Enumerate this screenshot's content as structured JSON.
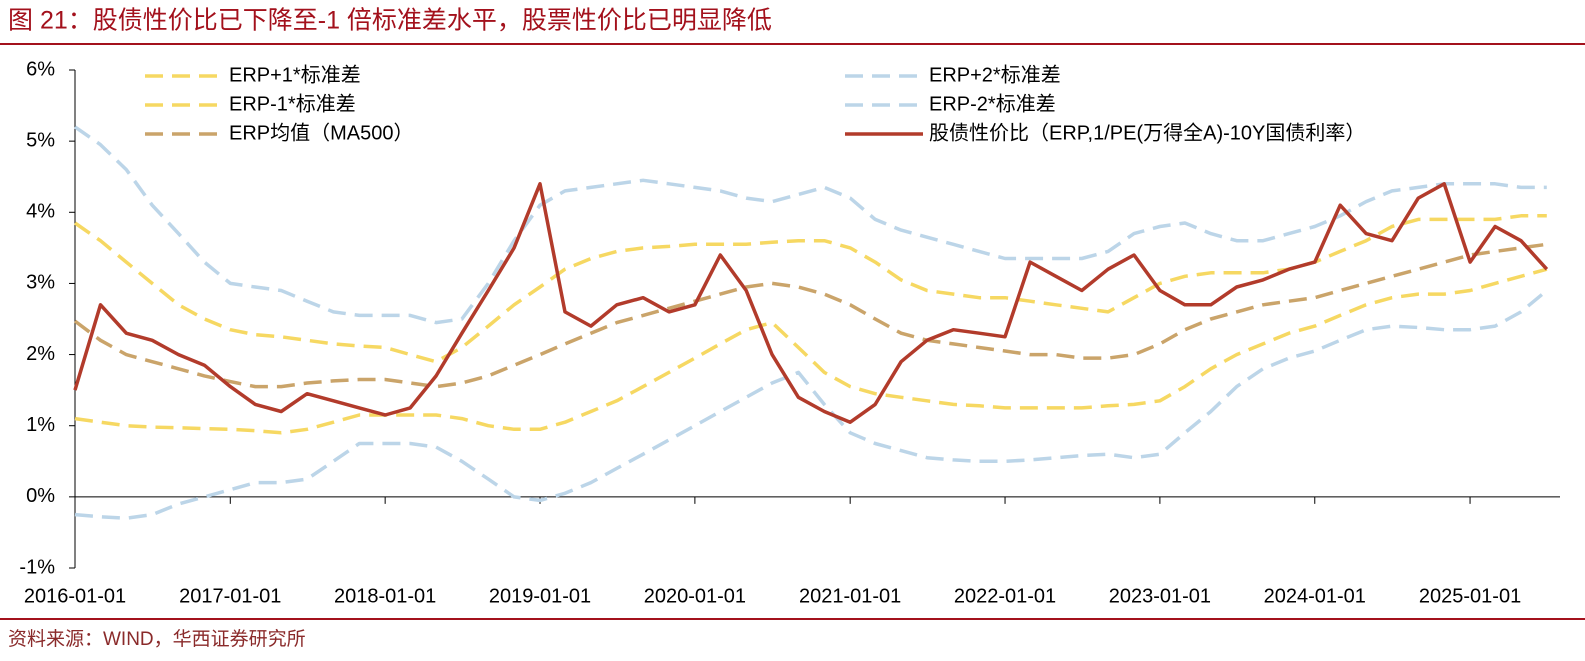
{
  "chart_data": {
    "type": "line",
    "title": "图 21：股债性价比已下降至-1 倍标准差水平，股票性价比已明显降低",
    "source": "资料来源：WIND，华西证券研究所",
    "x": [
      "2016-01-01",
      "2016-03-01",
      "2016-05-01",
      "2016-07-01",
      "2016-09-01",
      "2016-11-01",
      "2017-01-01",
      "2017-03-01",
      "2017-05-01",
      "2017-07-01",
      "2017-09-01",
      "2017-11-01",
      "2018-01-01",
      "2018-03-01",
      "2018-05-01",
      "2018-07-01",
      "2018-09-01",
      "2018-11-01",
      "2019-01-01",
      "2019-03-01",
      "2019-05-01",
      "2019-07-01",
      "2019-09-01",
      "2019-11-01",
      "2020-01-01",
      "2020-03-01",
      "2020-05-01",
      "2020-07-01",
      "2020-09-01",
      "2020-11-01",
      "2021-01-01",
      "2021-03-01",
      "2021-05-01",
      "2021-07-01",
      "2021-09-01",
      "2021-11-01",
      "2022-01-01",
      "2022-03-01",
      "2022-05-01",
      "2022-07-01",
      "2022-09-01",
      "2022-11-01",
      "2023-01-01",
      "2023-03-01",
      "2023-05-01",
      "2023-07-01",
      "2023-09-01",
      "2023-11-01",
      "2024-01-01",
      "2024-03-01",
      "2024-05-01",
      "2024-07-01",
      "2024-09-01",
      "2024-11-01",
      "2025-01-01",
      "2025-03-01",
      "2025-05-01",
      "2025-07-01"
    ],
    "xlim": [
      "2016-01-01",
      "2025-08-01"
    ],
    "xticks": [
      "2016-01-01",
      "2017-01-01",
      "2018-01-01",
      "2019-01-01",
      "2020-01-01",
      "2021-01-01",
      "2022-01-01",
      "2023-01-01",
      "2024-01-01",
      "2025-01-01"
    ],
    "ylim": [
      -1,
      6
    ],
    "yticks": [
      {
        "value": -1,
        "label": "-1%"
      },
      {
        "value": 0,
        "label": "0%"
      },
      {
        "value": 1,
        "label": "1%"
      },
      {
        "value": 2,
        "label": "2%"
      },
      {
        "value": 3,
        "label": "3%"
      },
      {
        "value": 4,
        "label": "4%"
      },
      {
        "value": 5,
        "label": "5%"
      },
      {
        "value": 6,
        "label": "6%"
      }
    ],
    "grid": false,
    "series": [
      {
        "name": "ERP+1*标准差",
        "color": "#f6d862",
        "dash": true,
        "values": [
          3.85,
          3.6,
          3.3,
          3.0,
          2.7,
          2.5,
          2.35,
          2.28,
          2.25,
          2.2,
          2.15,
          2.12,
          2.1,
          2.0,
          1.9,
          2.1,
          2.4,
          2.7,
          2.95,
          3.2,
          3.35,
          3.45,
          3.5,
          3.52,
          3.55,
          3.55,
          3.55,
          3.58,
          3.6,
          3.6,
          3.5,
          3.3,
          3.05,
          2.9,
          2.85,
          2.8,
          2.8,
          2.75,
          2.7,
          2.65,
          2.6,
          2.8,
          3.0,
          3.1,
          3.15,
          3.15,
          3.15,
          3.2,
          3.3,
          3.45,
          3.6,
          3.8,
          3.9,
          3.9,
          3.9,
          3.9,
          3.95,
          3.95
        ]
      },
      {
        "name": "ERP+2*标准差",
        "color": "#bcd5e8",
        "dash": true,
        "values": [
          5.2,
          4.95,
          4.6,
          4.1,
          3.7,
          3.3,
          3.0,
          2.95,
          2.9,
          2.75,
          2.6,
          2.55,
          2.55,
          2.55,
          2.45,
          2.5,
          3.0,
          3.6,
          4.1,
          4.3,
          4.35,
          4.4,
          4.45,
          4.4,
          4.35,
          4.3,
          4.2,
          4.15,
          4.25,
          4.35,
          4.2,
          3.9,
          3.75,
          3.65,
          3.55,
          3.45,
          3.35,
          3.35,
          3.35,
          3.35,
          3.45,
          3.7,
          3.8,
          3.85,
          3.7,
          3.6,
          3.6,
          3.7,
          3.8,
          3.95,
          4.15,
          4.3,
          4.35,
          4.4,
          4.4,
          4.4,
          4.35,
          4.35
        ]
      },
      {
        "name": "ERP-1*标准差",
        "color": "#f6d862",
        "dash": true,
        "values": [
          1.1,
          1.05,
          1.0,
          0.98,
          0.97,
          0.96,
          0.95,
          0.93,
          0.9,
          0.95,
          1.05,
          1.15,
          1.15,
          1.15,
          1.15,
          1.1,
          1.0,
          0.95,
          0.95,
          1.05,
          1.2,
          1.35,
          1.55,
          1.75,
          1.95,
          2.15,
          2.35,
          2.45,
          2.1,
          1.75,
          1.55,
          1.45,
          1.4,
          1.35,
          1.3,
          1.28,
          1.25,
          1.25,
          1.25,
          1.25,
          1.28,
          1.3,
          1.35,
          1.55,
          1.8,
          2.0,
          2.15,
          2.3,
          2.4,
          2.55,
          2.7,
          2.8,
          2.85,
          2.85,
          2.9,
          3.0,
          3.1,
          3.2
        ]
      },
      {
        "name": "ERP-2*标准差",
        "color": "#bcd5e8",
        "dash": true,
        "values": [
          -0.25,
          -0.28,
          -0.3,
          -0.25,
          -0.1,
          0.0,
          0.1,
          0.2,
          0.2,
          0.25,
          0.5,
          0.75,
          0.75,
          0.75,
          0.7,
          0.5,
          0.25,
          0.0,
          -0.05,
          0.05,
          0.2,
          0.4,
          0.6,
          0.8,
          1.0,
          1.2,
          1.4,
          1.6,
          1.75,
          1.3,
          0.9,
          0.75,
          0.65,
          0.55,
          0.52,
          0.5,
          0.5,
          0.52,
          0.55,
          0.58,
          0.6,
          0.55,
          0.6,
          0.9,
          1.2,
          1.55,
          1.8,
          1.95,
          2.05,
          2.2,
          2.35,
          2.4,
          2.38,
          2.35,
          2.35,
          2.4,
          2.6,
          2.9
        ]
      },
      {
        "name": "ERP均值（MA500）",
        "color": "#caa46a",
        "dash": true,
        "values": [
          2.47,
          2.2,
          2.0,
          1.9,
          1.8,
          1.7,
          1.62,
          1.55,
          1.55,
          1.6,
          1.63,
          1.65,
          1.65,
          1.6,
          1.55,
          1.6,
          1.7,
          1.85,
          2.0,
          2.15,
          2.3,
          2.45,
          2.55,
          2.65,
          2.75,
          2.85,
          2.95,
          3.0,
          2.95,
          2.85,
          2.7,
          2.5,
          2.3,
          2.2,
          2.15,
          2.1,
          2.05,
          2.0,
          2.0,
          1.95,
          1.95,
          2.0,
          2.15,
          2.35,
          2.5,
          2.6,
          2.7,
          2.75,
          2.8,
          2.9,
          3.0,
          3.1,
          3.2,
          3.3,
          3.4,
          3.45,
          3.5,
          3.55
        ]
      },
      {
        "name": "股债性价比（ERP,1/PE(万得全A)-10Y国债利率）",
        "color": "#b23b2b",
        "dash": false,
        "values": [
          1.5,
          2.7,
          2.3,
          2.2,
          2.0,
          1.85,
          1.55,
          1.3,
          1.2,
          1.45,
          1.35,
          1.25,
          1.15,
          1.25,
          1.7,
          2.3,
          2.9,
          3.5,
          4.4,
          2.6,
          2.4,
          2.7,
          2.8,
          2.6,
          2.7,
          3.4,
          2.9,
          2.0,
          1.4,
          1.2,
          1.05,
          1.3,
          1.9,
          2.2,
          2.35,
          2.3,
          2.25,
          3.3,
          3.1,
          2.9,
          3.2,
          3.4,
          2.9,
          2.7,
          2.7,
          2.95,
          3.05,
          3.2,
          3.3,
          4.1,
          3.7,
          3.6,
          4.2,
          4.4,
          3.3,
          3.8,
          3.6,
          3.2
        ]
      }
    ]
  }
}
